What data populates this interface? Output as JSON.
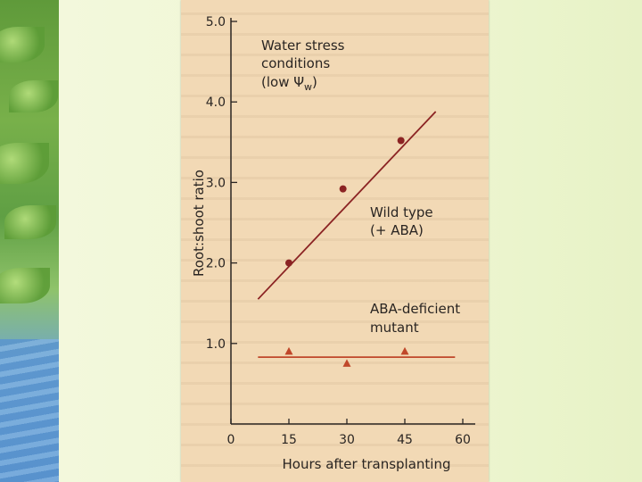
{
  "chart_data": {
    "type": "scatter",
    "ylabel": "Root:shoot ratio",
    "xlabel": "Hours after transplanting",
    "xlim": [
      0,
      60
    ],
    "ylim": [
      0,
      5.0
    ],
    "x_ticks": [
      "0",
      "15",
      "30",
      "45",
      "60"
    ],
    "y_ticks": [
      "1.0",
      "2.0",
      "3.0",
      "4.0",
      "5.0"
    ],
    "grid": false,
    "annotations": {
      "condition": [
        "Water stress",
        "conditions",
        "(low Ψ",
        "w",
        ")"
      ],
      "wild_type": [
        "Wild type",
        "(+ ABA)"
      ],
      "mutant": [
        "ABA-deficient",
        "mutant"
      ]
    },
    "series": [
      {
        "name": "Wild type (+ ABA)",
        "marker": "circle",
        "color": "#8b2323",
        "points": [
          [
            15,
            2.0
          ],
          [
            29,
            2.92
          ],
          [
            44,
            3.52
          ]
        ],
        "fit_line": [
          [
            7,
            1.55
          ],
          [
            53,
            3.88
          ]
        ]
      },
      {
        "name": "ABA-deficient mutant",
        "marker": "triangle",
        "color": "#c0472a",
        "points": [
          [
            15,
            0.9
          ],
          [
            30,
            0.75
          ],
          [
            45,
            0.9
          ]
        ],
        "fit_line": [
          [
            7,
            0.83
          ],
          [
            58,
            0.83
          ]
        ]
      }
    ]
  }
}
